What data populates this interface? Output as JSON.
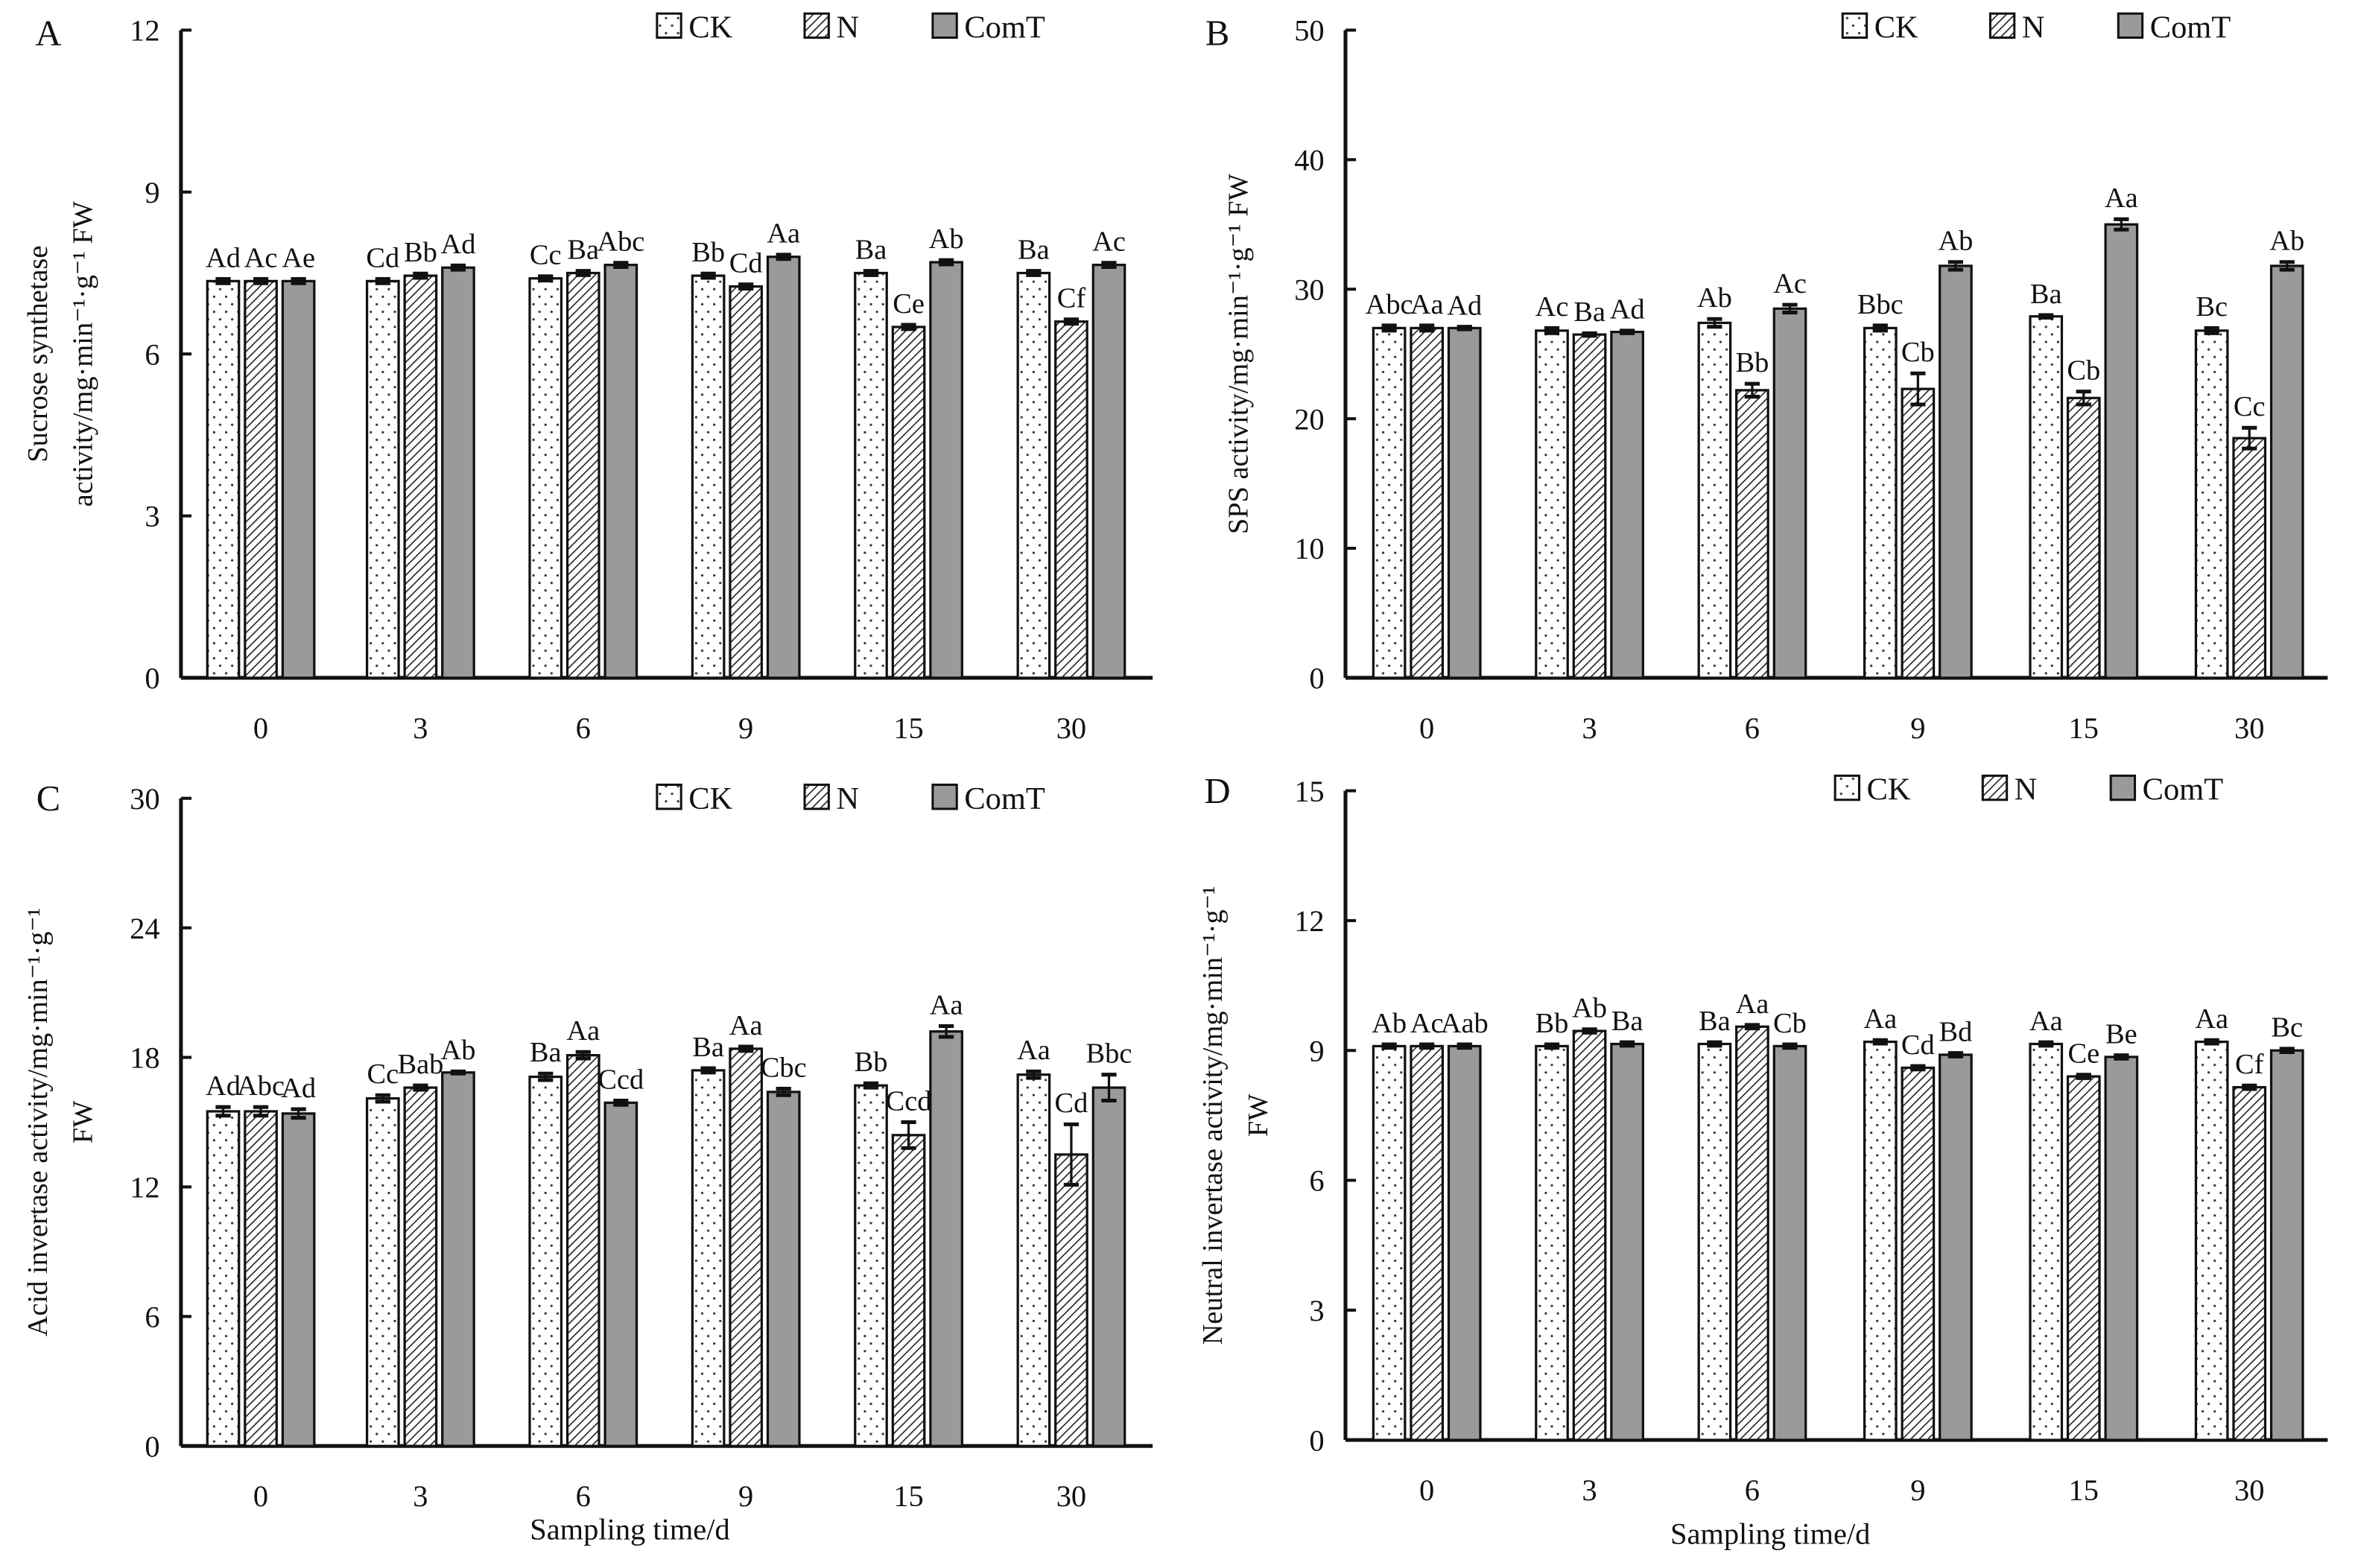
{
  "chart_data": [
    {
      "type": "bar",
      "panel": "A",
      "ylabel_lines": [
        "Sucrose synthetase",
        "activity/mg·min⁻¹·g⁻¹ FW"
      ],
      "xlabel": "",
      "ylim": [
        0,
        12
      ],
      "yticks": [
        0,
        3,
        6,
        9,
        12
      ],
      "categories": [
        "0",
        "3",
        "6",
        "9",
        "15",
        "30"
      ],
      "legend": [
        "CK",
        "N",
        "ComT"
      ],
      "legend_position": "top-right",
      "series": [
        {
          "name": "CK",
          "values": [
            7.35,
            7.35,
            7.4,
            7.45,
            7.5,
            7.5
          ],
          "errors": [
            0.04,
            0.04,
            0.04,
            0.04,
            0.04,
            0.04
          ],
          "labels": [
            "Ad",
            "Cd",
            "Cc",
            "Bb",
            "Ba",
            "Ba"
          ]
        },
        {
          "name": "N",
          "values": [
            7.35,
            7.45,
            7.5,
            7.25,
            6.5,
            6.6
          ],
          "errors": [
            0.04,
            0.04,
            0.04,
            0.04,
            0.04,
            0.04
          ],
          "labels": [
            "Ac",
            "Bb",
            "Ba",
            "Cd",
            "Ce",
            "Cf"
          ]
        },
        {
          "name": "ComT",
          "values": [
            7.35,
            7.6,
            7.65,
            7.8,
            7.7,
            7.65
          ],
          "errors": [
            0.04,
            0.04,
            0.04,
            0.04,
            0.04,
            0.04
          ],
          "labels": [
            "Ae",
            "Ad",
            "Abc",
            "Aa",
            "Ab",
            "Ac"
          ]
        }
      ]
    },
    {
      "type": "bar",
      "panel": "B",
      "ylabel_lines": [
        "SPS activity/mg·min⁻¹·g⁻¹ FW"
      ],
      "xlabel": "",
      "ylim": [
        0,
        50
      ],
      "yticks": [
        0,
        10,
        20,
        30,
        40,
        50
      ],
      "categories": [
        "0",
        "3",
        "6",
        "9",
        "15",
        "30"
      ],
      "legend": [
        "CK",
        "N",
        "ComT"
      ],
      "legend_position": "top-right",
      "series": [
        {
          "name": "CK",
          "values": [
            27,
            26.8,
            27.4,
            27,
            27.9,
            26.8
          ],
          "errors": [
            0.2,
            0.2,
            0.3,
            0.2,
            0.1,
            0.2
          ],
          "labels": [
            "Abc",
            "Ac",
            "Ab",
            "Bbc",
            "Ba",
            "Bc"
          ]
        },
        {
          "name": "N",
          "values": [
            27,
            26.5,
            22.2,
            22.3,
            21.6,
            18.5
          ],
          "errors": [
            0.2,
            0.1,
            0.5,
            1.2,
            0.5,
            0.8
          ],
          "labels": [
            "Aa",
            "Ba",
            "Bb",
            "Cb",
            "Cb",
            "Cc"
          ]
        },
        {
          "name": "ComT",
          "values": [
            27,
            26.7,
            28.5,
            31.8,
            35,
            31.8
          ],
          "errors": [
            0.1,
            0.1,
            0.3,
            0.3,
            0.4,
            0.3
          ],
          "labels": [
            "Ad",
            "Ad",
            "Ac",
            "Ab",
            "Aa",
            "Ab"
          ]
        }
      ]
    },
    {
      "type": "bar",
      "panel": "C",
      "ylabel_lines": [
        "Acid invertase activity/mg·min⁻¹·g⁻¹",
        "FW"
      ],
      "xlabel": "Sampling time/d",
      "ylim": [
        0,
        30
      ],
      "yticks": [
        0,
        6,
        12,
        18,
        24,
        30
      ],
      "categories": [
        "0",
        "3",
        "6",
        "9",
        "15",
        "30"
      ],
      "legend": [
        "CK",
        "N",
        "ComT"
      ],
      "legend_position": "top-right",
      "series": [
        {
          "name": "CK",
          "values": [
            15.5,
            16.1,
            17.1,
            17.4,
            16.7,
            17.2
          ],
          "errors": [
            0.2,
            0.15,
            0.15,
            0.1,
            0.1,
            0.15
          ],
          "labels": [
            "Ad",
            "Cc",
            "Ba",
            "Ba",
            "Bb",
            "Aa"
          ]
        },
        {
          "name": "N",
          "values": [
            15.5,
            16.6,
            18.1,
            18.4,
            14.4,
            13.5
          ],
          "errors": [
            0.2,
            0.1,
            0.15,
            0.1,
            0.6,
            1.4
          ],
          "labels": [
            "Abc",
            "Bab",
            "Aa",
            "Aa",
            "Ccd",
            "Cd"
          ]
        },
        {
          "name": "ComT",
          "values": [
            15.4,
            17.3,
            15.9,
            16.4,
            19.2,
            16.6
          ],
          "errors": [
            0.2,
            0.05,
            0.1,
            0.15,
            0.25,
            0.6
          ],
          "labels": [
            "Ad",
            "Ab",
            "Ccd",
            "Cbc",
            "Aa",
            "Bbc"
          ]
        }
      ]
    },
    {
      "type": "bar",
      "panel": "D",
      "ylabel_lines": [
        "Neutral invertase activity/mg·min⁻¹·g⁻¹",
        "FW"
      ],
      "xlabel": "Sampling time/d",
      "ylim": [
        0,
        15
      ],
      "yticks": [
        0,
        3,
        6,
        9,
        12,
        15
      ],
      "categories": [
        "0",
        "3",
        "6",
        "9",
        "15",
        "30"
      ],
      "legend": [
        "CK",
        "N",
        "ComT"
      ],
      "legend_position": "top-right",
      "series": [
        {
          "name": "CK",
          "values": [
            9.1,
            9.1,
            9.15,
            9.2,
            9.15,
            9.2
          ],
          "errors": [
            0.04,
            0.04,
            0.04,
            0.04,
            0.04,
            0.04
          ],
          "labels": [
            "Ab",
            "Bb",
            "Ba",
            "Aa",
            "Aa",
            "Aa"
          ]
        },
        {
          "name": "N",
          "values": [
            9.1,
            9.45,
            9.55,
            8.6,
            8.4,
            8.15
          ],
          "errors": [
            0.04,
            0.04,
            0.04,
            0.04,
            0.04,
            0.04
          ],
          "labels": [
            "Ac",
            "Ab",
            "Aa",
            "Cd",
            "Ce",
            "Cf"
          ]
        },
        {
          "name": "ComT",
          "values": [
            9.1,
            9.15,
            9.1,
            8.9,
            8.85,
            9.0
          ],
          "errors": [
            0.04,
            0.04,
            0.04,
            0.04,
            0.04,
            0.04
          ],
          "labels": [
            "Aab",
            "Ba",
            "Cb",
            "Bd",
            "Be",
            "Bc"
          ]
        }
      ]
    }
  ],
  "colors": {
    "axis": "#111111",
    "comt_fill": "#9a9a9a",
    "ck_fill": "#ffffff"
  }
}
